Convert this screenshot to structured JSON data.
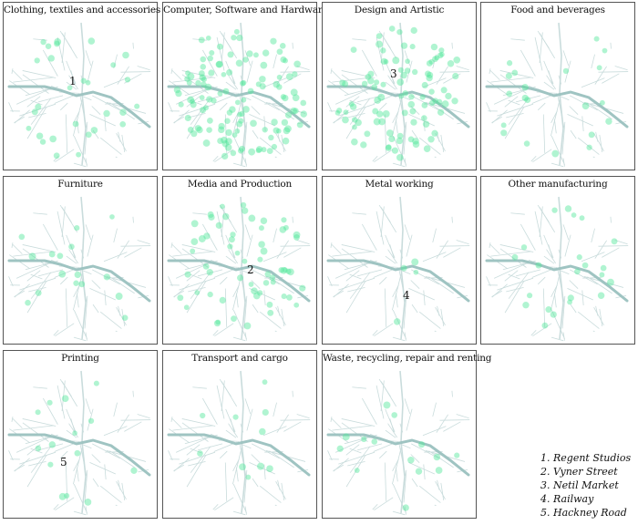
{
  "panels": [
    {
      "title": "Clothing, textiles and accessories",
      "marker": "1",
      "density": 28,
      "seed": 11
    },
    {
      "title": "Computer, Software and Hardware",
      "marker": "",
      "density": 120,
      "seed": 23
    },
    {
      "title": "Design and Artistic",
      "marker": "3",
      "density": 95,
      "seed": 37
    },
    {
      "title": "Food and beverages",
      "marker": "",
      "density": 20,
      "seed": 41
    },
    {
      "title": "Furniture",
      "marker": "",
      "density": 16,
      "seed": 53
    },
    {
      "title": "Media and Production",
      "marker": "2",
      "density": 60,
      "seed": 67
    },
    {
      "title": "Metal working",
      "marker": "4",
      "density": 4,
      "seed": 71
    },
    {
      "title": "Other manufacturing",
      "marker": "",
      "density": 22,
      "seed": 83
    },
    {
      "title": "Printing",
      "marker": "5",
      "density": 14,
      "seed": 97
    },
    {
      "title": "Transport and cargo",
      "marker": "",
      "density": 10,
      "seed": 101
    },
    {
      "title": "Waste, recycling, repair and renting",
      "marker": "",
      "density": 14,
      "seed": 113
    }
  ],
  "legend": [
    "1. Regent Studios",
    "2. Vyner Street",
    "3. Netil Market",
    "4. Railway",
    "5. Hackney Road"
  ],
  "colors": {
    "street": "#c9dcdc",
    "canal": "#9fc4c2",
    "point": "#4fe69a",
    "border": "#555555"
  }
}
